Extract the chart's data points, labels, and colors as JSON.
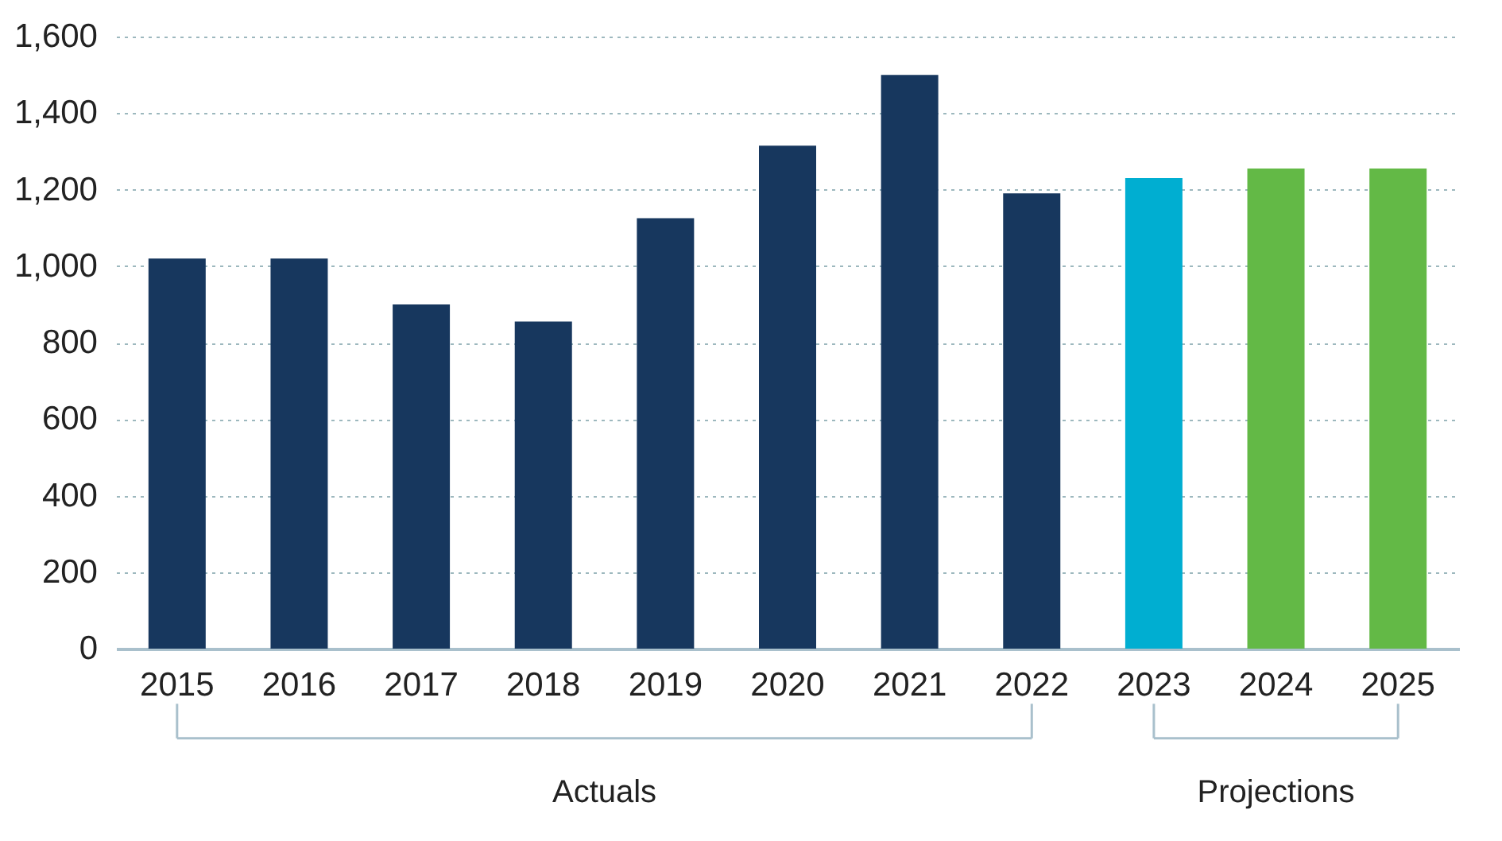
{
  "chart_data": {
    "type": "bar",
    "categories": [
      "2015",
      "2016",
      "2017",
      "2018",
      "2019",
      "2020",
      "2021",
      "2022",
      "2023",
      "2024",
      "2025"
    ],
    "values": [
      1020,
      1020,
      900,
      855,
      1125,
      1315,
      1500,
      1190,
      1230,
      1255,
      1255
    ],
    "colors": [
      "#17375e",
      "#17375e",
      "#17375e",
      "#17375e",
      "#17375e",
      "#17375e",
      "#17375e",
      "#17375e",
      "#00aed1",
      "#63b946",
      "#63b946"
    ],
    "ylim": [
      0,
      1600
    ],
    "yticks": [
      0,
      {
        "value": 200,
        "label": "200"
      },
      {
        "value": 400,
        "label": "400"
      },
      {
        "value": 600,
        "label": "600"
      },
      {
        "value": 800,
        "label": "800"
      },
      {
        "value": 1000,
        "label": "1,000"
      },
      {
        "value": 1200,
        "label": "1,200"
      },
      {
        "value": 1400,
        "label": "1,400"
      },
      {
        "value": 1600,
        "label": "1,600"
      }
    ],
    "grid": "y",
    "legend": false,
    "annotations": [
      "Actuals",
      "Projections"
    ]
  }
}
